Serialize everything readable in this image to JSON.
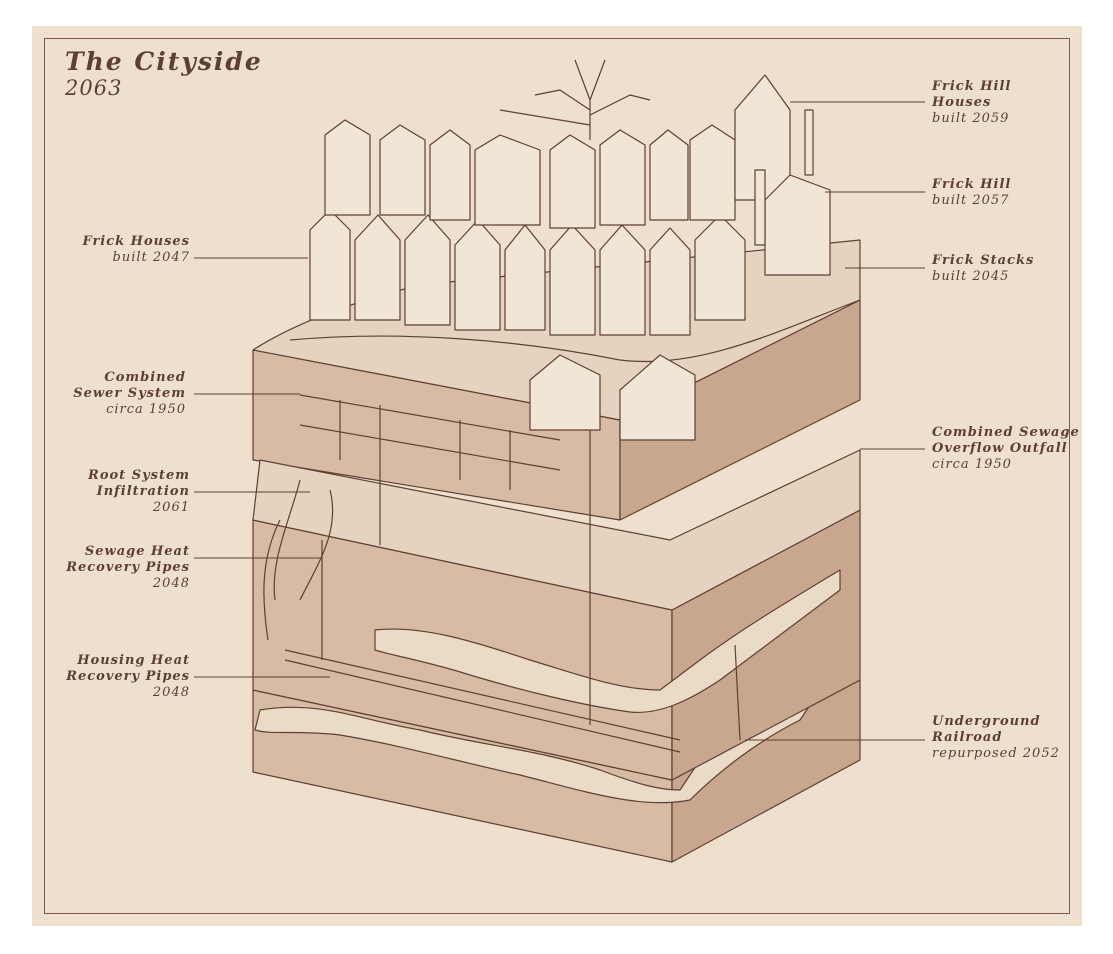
{
  "title": "The Cityside",
  "year": "2063",
  "labels_left": [
    {
      "id": "frick-houses",
      "name": "Frick Houses",
      "detail": "built 2047"
    },
    {
      "id": "combined-sewer",
      "name": "Combined\nSewer System",
      "detail": "circa 1950"
    },
    {
      "id": "root-system",
      "name": "Root System\nInfiltration",
      "detail": "2061"
    },
    {
      "id": "sewage-heat",
      "name": "Sewage Heat\nRecovery Pipes",
      "detail": "2048"
    },
    {
      "id": "housing-heat",
      "name": "Housing Heat\nRecovery Pipes",
      "detail": "2048"
    }
  ],
  "labels_right": [
    {
      "id": "frick-hill-houses",
      "name": "Frick Hill\nHouses",
      "detail": "built 2059"
    },
    {
      "id": "frick-hill",
      "name": "Frick Hill",
      "detail": "built 2057"
    },
    {
      "id": "frick-stacks",
      "name": "Frick Stacks",
      "detail": "built 2045"
    },
    {
      "id": "combined-sewage-outfall",
      "name": "Combined Sewage\nOverflow Outfall",
      "detail": "circa 1950"
    },
    {
      "id": "underground-railroad",
      "name": "Underground\nRailroad",
      "detail": "repurposed 2052"
    }
  ],
  "colors": {
    "background": "#eee0cc",
    "ink": "#5e3f33",
    "block": "#d8bba4",
    "block_dark": "#c9a78e",
    "block_light": "#e6d3bf"
  }
}
